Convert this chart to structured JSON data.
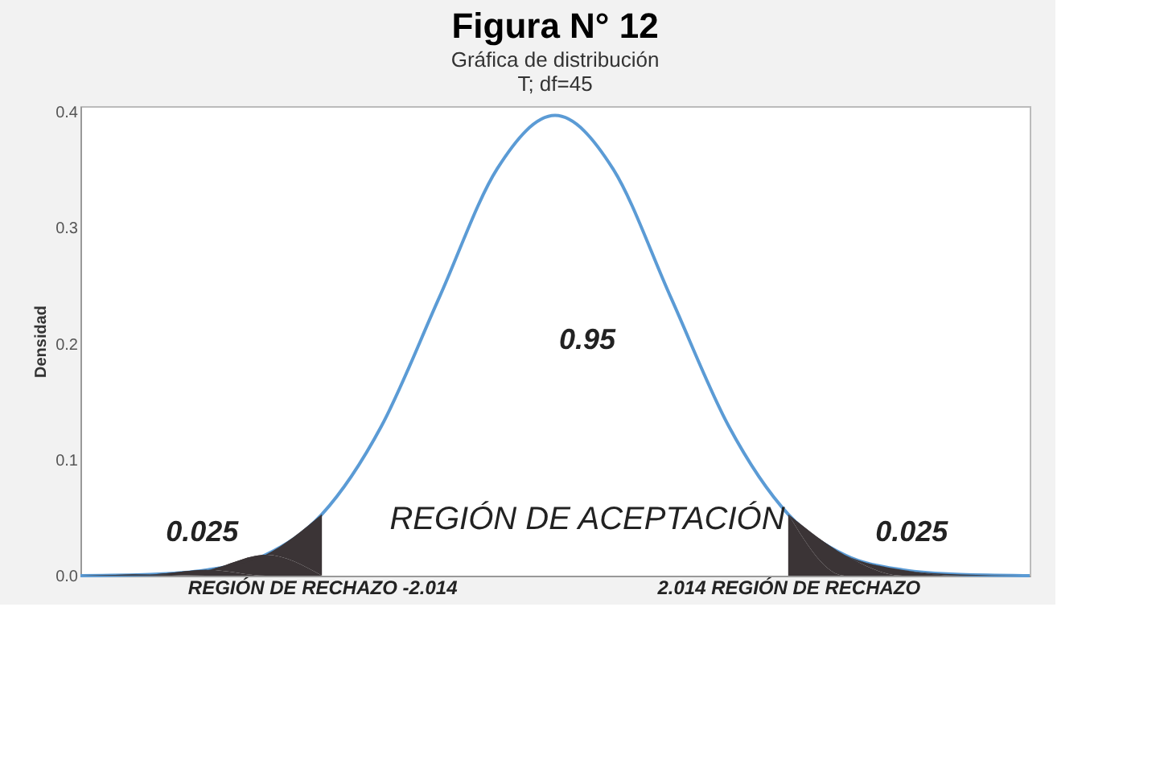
{
  "chart_data": {
    "type": "line",
    "title": "Figura N° 12",
    "subtitle": "Gráfica de distribución\nT; df=45",
    "ylabel": "Densidad",
    "x": [
      -4.1,
      -3.5,
      -3,
      -2.5,
      -2.014,
      -1.5,
      -1,
      -0.5,
      0,
      0.5,
      1,
      1.5,
      2.014,
      2.5,
      3,
      3.5,
      4.1
    ],
    "series": [
      {
        "color": "#5b9bd5",
        "values": [
          0,
          0.001,
          0.005,
          0.018,
          0.053,
          0.129,
          0.24,
          0.351,
          0.397,
          0.351,
          0.24,
          0.129,
          0.053,
          0.018,
          0.005,
          0.001,
          0
        ]
      },
      {
        "type": "area",
        "color": "#3b3436",
        "x": [
          -4.1,
          -3.5,
          -3,
          -2.5,
          -2.014
        ],
        "values": [
          0,
          0.001,
          0.005,
          0.018,
          0.053
        ]
      },
      {
        "type": "area",
        "color": "#3b3436",
        "x": [
          2.014,
          2.5,
          3,
          3.5,
          4.1
        ],
        "values": [
          0.053,
          0.018,
          0.005,
          0.001,
          0
        ]
      }
    ],
    "xlim": [
      -4.1,
      4.1
    ],
    "xticks": [
      {
        "value": -2.014,
        "label": "REGIÓN DE RECHAZO -2.014"
      },
      {
        "value": 2.014,
        "label": "2.014 REGIÓN DE RECHAZO"
      }
    ],
    "ylim": [
      0,
      0.405
    ],
    "yticks": [
      {
        "value": 0,
        "label": "0.0"
      },
      0.1,
      0.2,
      0.3,
      0.4
    ],
    "annotations": [
      "0.95",
      "0.025",
      "0.025",
      "REGIÓN DE ACEPTACIÓN"
    ],
    "grid": false,
    "line_style": "solid",
    "marker": "none"
  }
}
